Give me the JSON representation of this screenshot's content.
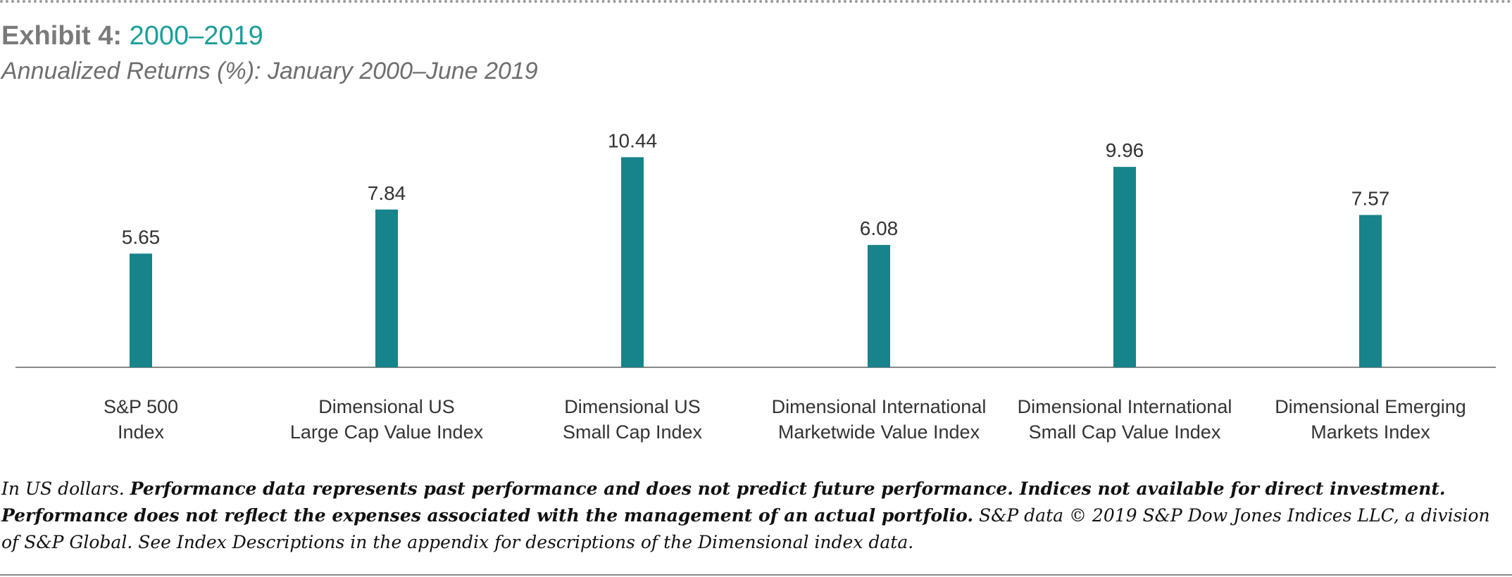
{
  "header": {
    "title_prefix": "Exhibit 4: ",
    "title_accent": "2000–2019",
    "subtitle": "Annualized Returns (%): January 2000–June 2019"
  },
  "colors": {
    "bar": "#17838a",
    "title_accent": "#1a9e9a",
    "title_gray": "#7a7a7a",
    "axis": "#888888"
  },
  "chart_data": {
    "type": "bar",
    "title": "Annualized Returns (%): January 2000–June 2019",
    "categories": [
      [
        "S&P 500",
        "Index"
      ],
      [
        "Dimensional US",
        "Large Cap Value Index"
      ],
      [
        "Dimensional US",
        "Small Cap Index"
      ],
      [
        "Dimensional International",
        "Marketwide Value Index"
      ],
      [
        "Dimensional International",
        "Small Cap Value Index"
      ],
      [
        "Dimensional Emerging",
        "Markets Index"
      ]
    ],
    "values": [
      5.65,
      7.84,
      10.44,
      6.08,
      9.96,
      7.57
    ],
    "value_labels": [
      "5.65",
      "7.84",
      "10.44",
      "6.08",
      "9.96",
      "7.57"
    ],
    "ylim": [
      0,
      12
    ],
    "grid": false,
    "legend": "none",
    "xlabel": "",
    "ylabel": ""
  },
  "footnote": {
    "part1": "In US dollars. ",
    "part2_bold": "Performance data represents past performance and does not predict future performance. Indices not available for direct investment. Performance does not reflect the expenses associated with the management of an actual portfolio.",
    "part3": " S&P data © 2019 S&P Dow Jones Indices LLC, a division of S&P Global. See Index Descriptions in the appendix for descriptions of the Dimensional index data."
  }
}
